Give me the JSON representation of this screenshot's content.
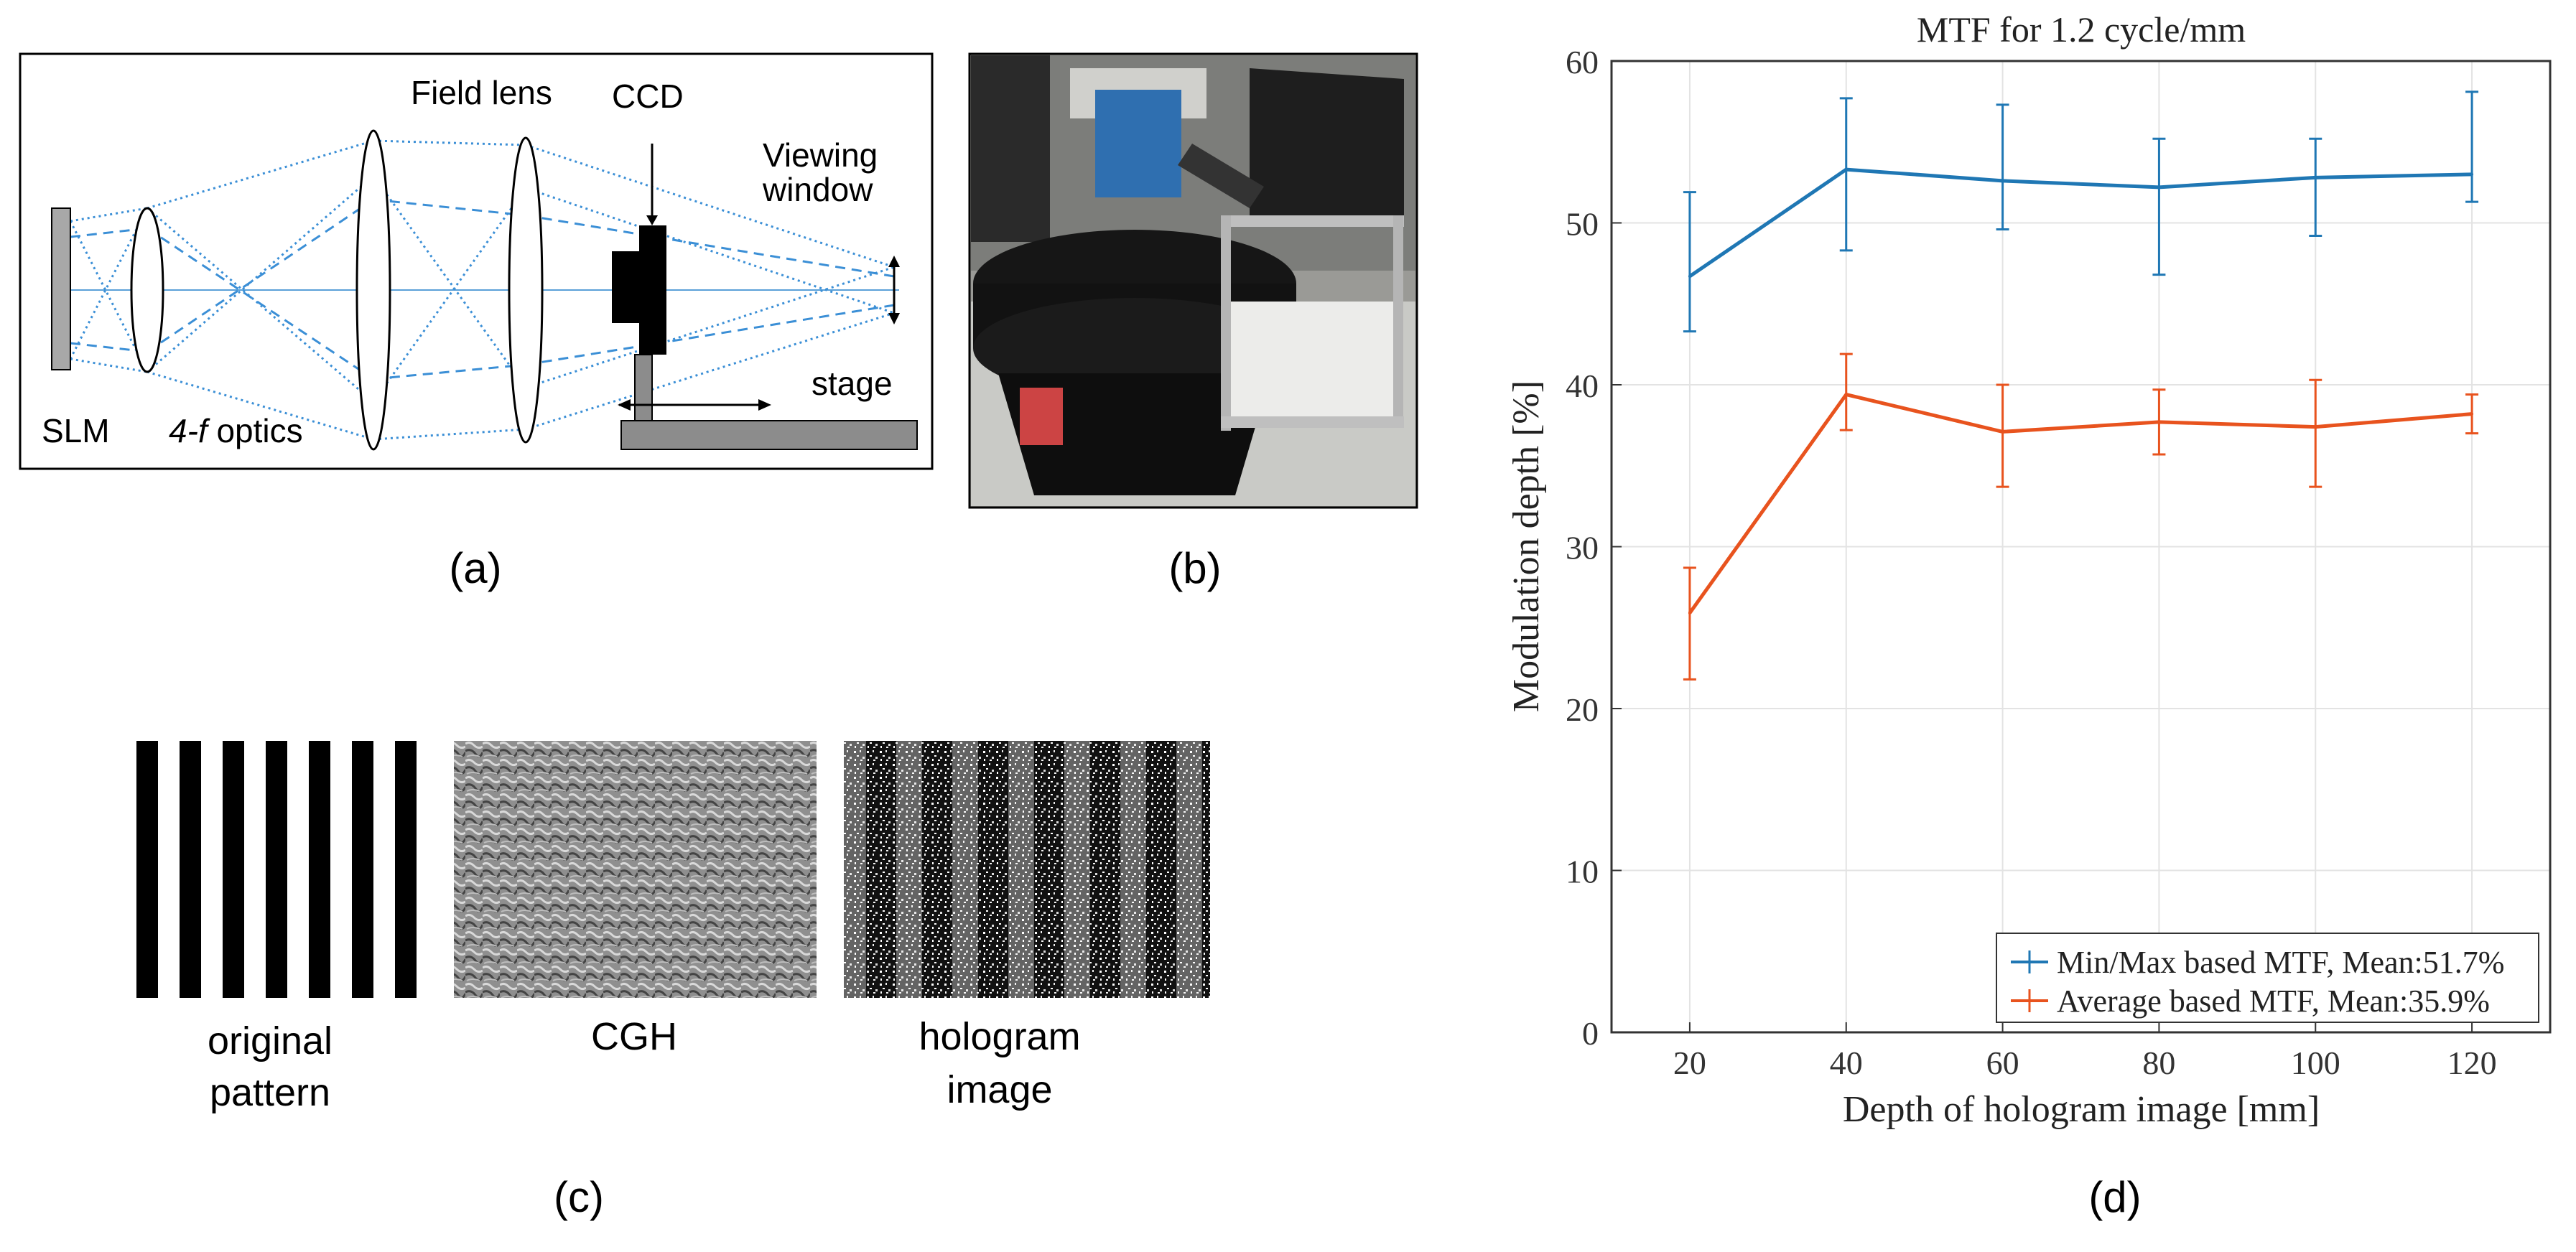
{
  "figure": {
    "panel_a": {
      "label": "(a)",
      "annotations": {
        "field_lens": "Field lens",
        "ccd": "CCD",
        "viewing_window_line1": "Viewing",
        "viewing_window_line2": "window",
        "slm": "SLM",
        "optics_prefix": "4-f",
        "optics_suffix": " optics",
        "stage": "stage"
      }
    },
    "panel_b": {
      "label": "(b)"
    },
    "panel_c": {
      "label": "(c)",
      "captions": {
        "original_line1": "original",
        "original_line2": "pattern",
        "cgh": "CGH",
        "hologram_line1": "hologram",
        "hologram_line2": "image"
      }
    },
    "panel_d": {
      "label": "(d)"
    }
  },
  "chart_data": {
    "type": "line",
    "title": "MTF for 1.2 cycle/mm",
    "xlabel": "Depth of hologram image [mm]",
    "ylabel": "Modulation depth [%]",
    "xlim": [
      10,
      130
    ],
    "ylim": [
      0,
      60
    ],
    "xticks": [
      20,
      40,
      60,
      80,
      100,
      120
    ],
    "yticks": [
      0,
      10,
      20,
      30,
      40,
      50,
      60
    ],
    "grid": true,
    "legend_position": "bottom-right",
    "x": [
      20,
      40,
      60,
      80,
      100,
      120
    ],
    "series": [
      {
        "name": "Min/Max based MTF, Mean:51.7%",
        "color": "#1f77b4",
        "values": [
          46.7,
          53.3,
          52.6,
          52.2,
          52.8,
          53.0
        ],
        "err_low": [
          43.3,
          48.3,
          49.6,
          46.8,
          49.2,
          51.3
        ],
        "err_high": [
          51.9,
          57.7,
          57.3,
          55.2,
          55.2,
          58.1
        ]
      },
      {
        "name": "Average based MTF, Mean:35.9%",
        "color": "#e8531e",
        "values": [
          25.9,
          39.4,
          37.1,
          37.7,
          37.4,
          38.2
        ],
        "err_low": [
          21.8,
          37.2,
          33.7,
          35.7,
          33.7,
          37.0
        ],
        "err_high": [
          28.7,
          41.9,
          40.0,
          39.7,
          40.3,
          39.4
        ]
      }
    ]
  }
}
